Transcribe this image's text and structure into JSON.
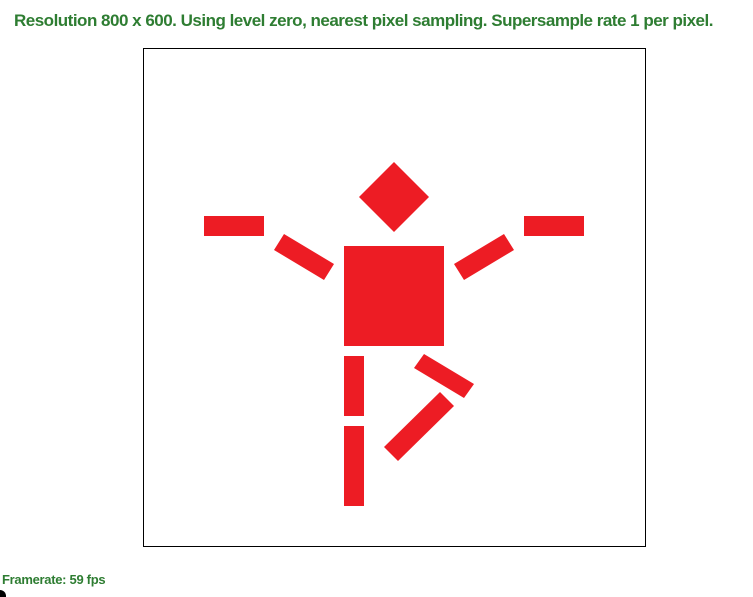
{
  "header": {
    "status": "Resolution 800 x 600. Using level zero, nearest pixel sampling. Supersample rate 1 per pixel."
  },
  "footer": {
    "framerate": "Framerate: 59 fps"
  },
  "canvas": {
    "background": "#ffffff",
    "border_color": "#000000"
  },
  "figure": {
    "fill_color": "#ed1c24",
    "parts": [
      "head",
      "torso",
      "left-hand",
      "left-forearm",
      "right-hand",
      "right-forearm",
      "left-thigh",
      "left-shin",
      "right-thigh",
      "right-shin"
    ]
  },
  "theme": {
    "status_color": "#2e7d32"
  }
}
